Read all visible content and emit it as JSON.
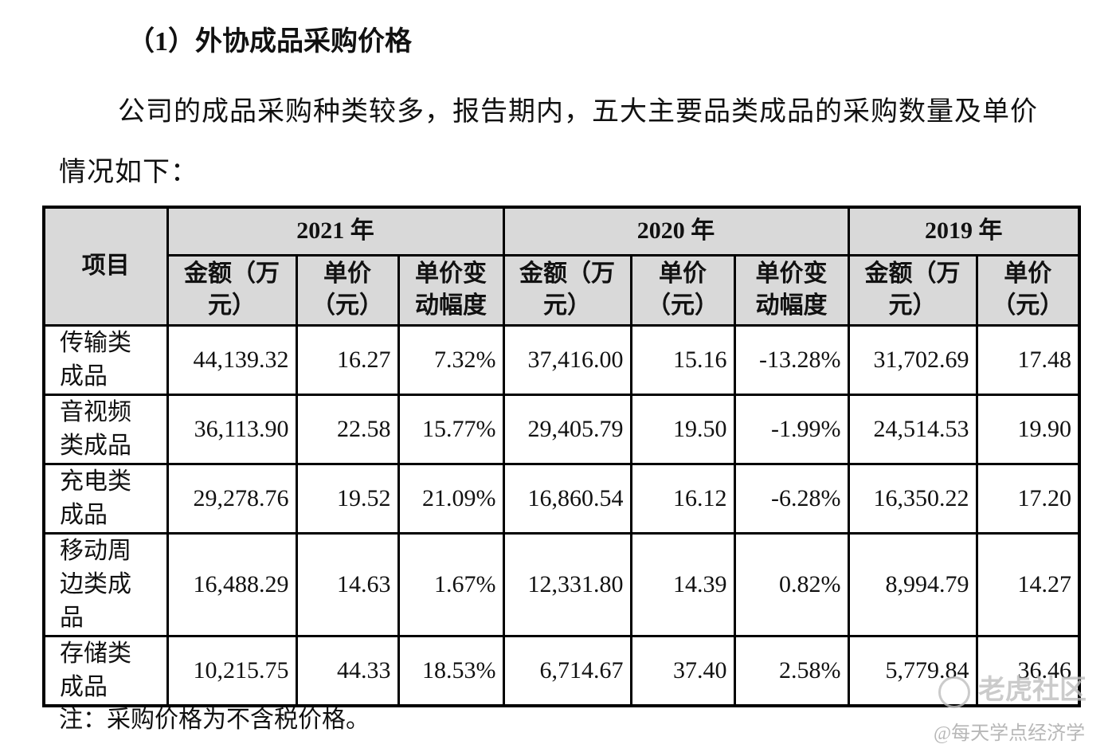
{
  "heading": "（1）外协成品采购价格",
  "paragraph_line1": "公司的成品采购种类较多，报告期内，五大主要品类成品的采购数量及单价",
  "paragraph_line2": "情况如下：",
  "table": {
    "item_header": "项目",
    "years": [
      "2021 年",
      "2020 年",
      "2019 年"
    ],
    "subheaders": [
      "金额（万元）",
      "单价（元）",
      "单价变动幅度",
      "金额（万元）",
      "单价（元）",
      "单价变动幅度",
      "金额（万元）",
      "单价（元）"
    ],
    "rows": [
      {
        "item": "传输类成品",
        "values": [
          "44,139.32",
          "16.27",
          "7.32%",
          "37,416.00",
          "15.16",
          "-13.28%",
          "31,702.69",
          "17.48"
        ]
      },
      {
        "item": "音视频类成品",
        "values": [
          "36,113.90",
          "22.58",
          "15.77%",
          "29,405.79",
          "19.50",
          "-1.99%",
          "24,514.53",
          "19.90"
        ]
      },
      {
        "item": "充电类成品",
        "values": [
          "29,278.76",
          "19.52",
          "21.09%",
          "16,860.54",
          "16.12",
          "-6.28%",
          "16,350.22",
          "17.20"
        ]
      },
      {
        "item": "移动周边类成品",
        "values": [
          "16,488.29",
          "14.63",
          "1.67%",
          "12,331.80",
          "14.39",
          "0.82%",
          "8,994.79",
          "14.27"
        ]
      },
      {
        "item": "存储类成品",
        "values": [
          "10,215.75",
          "44.33",
          "18.53%",
          "6,714.67",
          "37.40",
          "2.58%",
          "5,779.84",
          "36.46"
        ]
      }
    ]
  },
  "note": "注：采购价格为不含税价格。",
  "watermark_logo": "老虎社区",
  "watermark_author": "@每天学点经济学"
}
